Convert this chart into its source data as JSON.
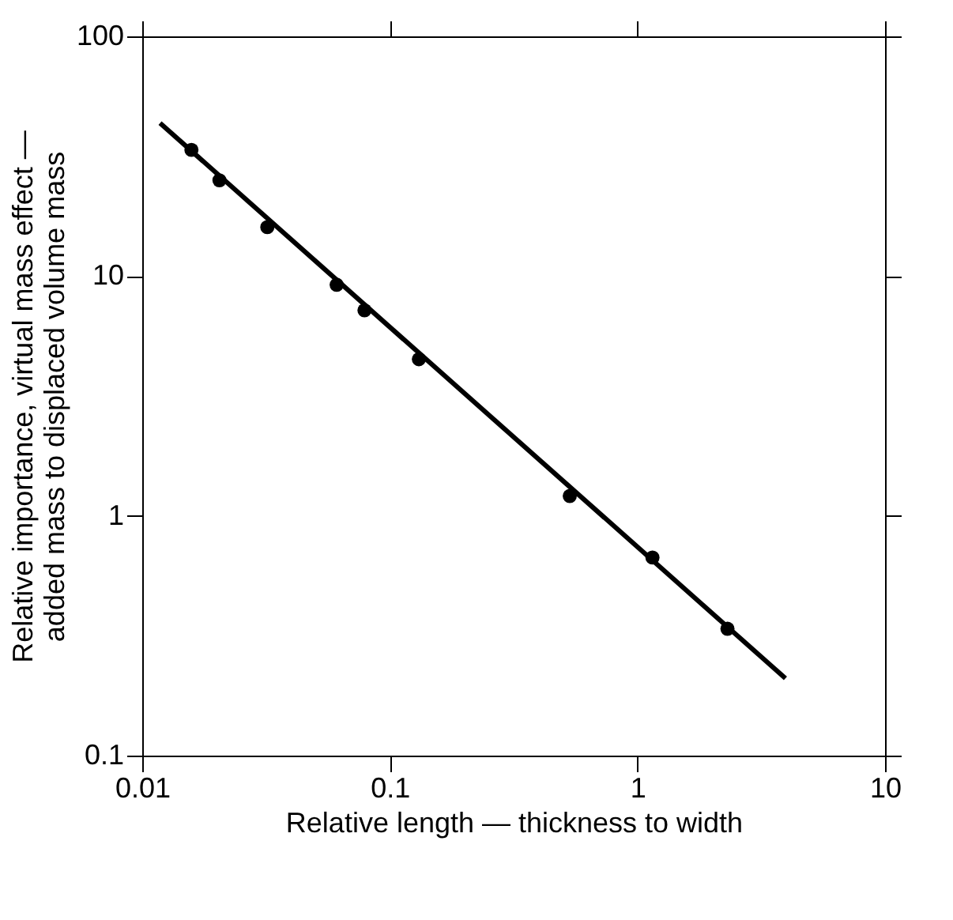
{
  "chart_data": {
    "type": "scatter",
    "xlabel": "Relative length — thickness to width",
    "ylabel": "Relative importance, virtual mass effect —\nadded mass to displaced volume mass",
    "log": "xy",
    "xlim": [
      0.01,
      10
    ],
    "ylim": [
      0.1,
      100
    ],
    "xticks": [
      0.01,
      0.1,
      1,
      10
    ],
    "yticks": [
      0.1,
      1,
      10,
      100
    ],
    "marker": "circle",
    "series": [
      {
        "color": "#000000",
        "x": [
          0.0158,
          0.0205,
          0.032,
          0.061,
          0.079,
          0.131,
          0.533,
          1.15,
          2.31
        ],
        "values": [
          33.6,
          25.1,
          16.0,
          9.2,
          7.2,
          4.5,
          1.21,
          0.67,
          0.338
        ]
      },
      {
        "type": "line",
        "color": "#000000",
        "line_style": "solid",
        "marker": "none",
        "x": [
          0.0118,
          3.96
        ],
        "values": [
          43.5,
          0.21
        ]
      }
    ]
  }
}
